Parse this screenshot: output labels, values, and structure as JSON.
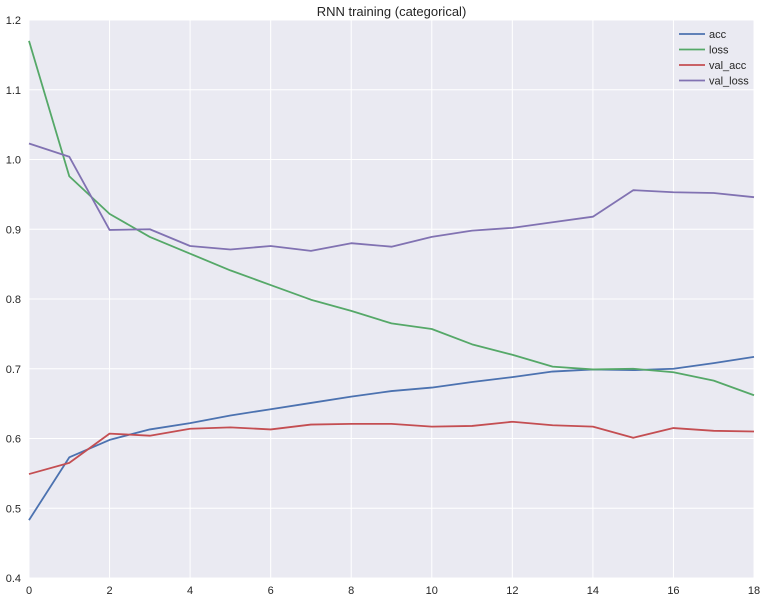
{
  "chart_data": {
    "type": "line",
    "title": "RNN training (categorical)",
    "xlabel": "",
    "ylabel": "",
    "xlim": [
      0,
      18
    ],
    "ylim": [
      0.4,
      1.2
    ],
    "grid": true,
    "legend_position": "top-right",
    "x_ticks": [
      0,
      2,
      4,
      6,
      8,
      10,
      12,
      14,
      16,
      18
    ],
    "y_ticks": [
      0.4,
      0.5,
      0.6,
      0.7,
      0.8,
      0.9,
      1.0,
      1.1,
      1.2
    ],
    "x_tick_labels": [
      "0",
      "2",
      "4",
      "6",
      "8",
      "10",
      "12",
      "14",
      "16",
      "18"
    ],
    "y_tick_labels": [
      "0.4",
      "0.5",
      "0.6",
      "0.7",
      "0.8",
      "0.9",
      "1.0",
      "1.1",
      "1.2"
    ],
    "x": [
      0,
      1,
      2,
      3,
      4,
      5,
      6,
      7,
      8,
      9,
      10,
      11,
      12,
      13,
      14,
      15,
      16,
      17,
      18
    ],
    "series": [
      {
        "name": "acc",
        "color": "#4c72b0",
        "values": [
          0.483,
          0.573,
          0.598,
          0.613,
          0.622,
          0.633,
          0.642,
          0.651,
          0.66,
          0.668,
          0.673,
          0.681,
          0.688,
          0.696,
          0.699,
          0.698,
          0.7,
          0.708,
          0.717
        ]
      },
      {
        "name": "loss",
        "color": "#55a868",
        "values": [
          1.17,
          0.976,
          0.922,
          0.889,
          0.865,
          0.841,
          0.82,
          0.799,
          0.783,
          0.765,
          0.757,
          0.735,
          0.72,
          0.703,
          0.699,
          0.7,
          0.695,
          0.683,
          0.662
        ]
      },
      {
        "name": "val_acc",
        "color": "#c44e52",
        "values": [
          0.549,
          0.565,
          0.607,
          0.604,
          0.614,
          0.616,
          0.613,
          0.62,
          0.621,
          0.621,
          0.617,
          0.618,
          0.624,
          0.619,
          0.617,
          0.601,
          0.615,
          0.611,
          0.61
        ]
      },
      {
        "name": "val_loss",
        "color": "#8172b2",
        "values": [
          1.023,
          1.004,
          0.899,
          0.9,
          0.876,
          0.871,
          0.876,
          0.869,
          0.88,
          0.875,
          0.889,
          0.898,
          0.902,
          0.91,
          0.918,
          0.956,
          0.953,
          0.952,
          0.946
        ]
      }
    ]
  }
}
